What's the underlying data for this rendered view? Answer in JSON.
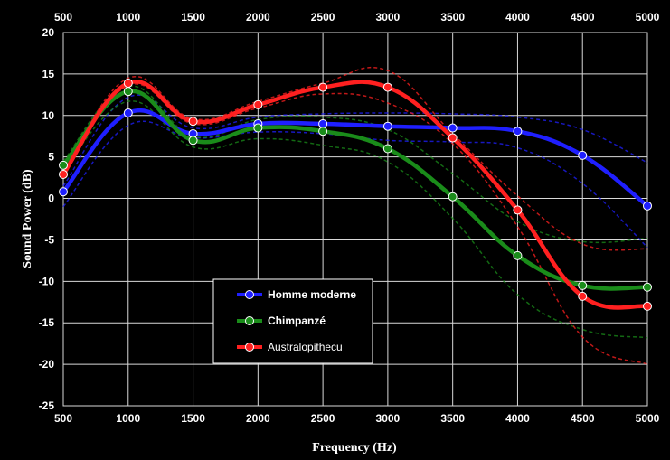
{
  "chart_data": {
    "type": "line",
    "xlabel": "Frequency (Hz)",
    "ylabel": "Sound Power (dB)",
    "xlim": [
      500,
      5000
    ],
    "ylim": [
      -25,
      20
    ],
    "x_ticks": [
      500,
      1000,
      1500,
      2000,
      2500,
      3000,
      3500,
      4000,
      4500,
      5000
    ],
    "y_ticks": [
      20,
      15,
      10,
      5,
      0,
      -5,
      -10,
      -15,
      -20,
      -25
    ],
    "x_tick_labels_top": true,
    "grid": true,
    "legend_position": "center-left, lower",
    "series": [
      {
        "name": "Homme moderne",
        "color": "#1f1fff",
        "bold_label": true,
        "x": [
          500,
          1000,
          1500,
          2000,
          2500,
          3000,
          3500,
          4000,
          4500,
          5000
        ],
        "values": [
          0.8,
          10.3,
          7.8,
          9.0,
          9.0,
          8.7,
          8.5,
          8.1,
          5.2,
          -0.9
        ],
        "upper": [
          1.5,
          12.2,
          8.5,
          9.8,
          10.2,
          10.3,
          10.2,
          9.8,
          8.3,
          4.3
        ],
        "lower": [
          -1.0,
          8.8,
          7.3,
          8.0,
          7.8,
          7.0,
          6.8,
          6.1,
          1.8,
          -5.9
        ]
      },
      {
        "name": "Chimpanzé",
        "color": "#1a8c1a",
        "bold_label": true,
        "x": [
          500,
          1000,
          1500,
          2000,
          2500,
          3000,
          3500,
          4000,
          4500,
          5000
        ],
        "values": [
          4.0,
          12.9,
          7.0,
          8.5,
          8.1,
          6.0,
          0.2,
          -6.9,
          -10.5,
          -10.7
        ],
        "upper": [
          4.5,
          13.5,
          7.5,
          9.5,
          9.8,
          8.3,
          3.0,
          -2.8,
          -5.2,
          -4.8
        ],
        "lower": [
          3.4,
          11.7,
          6.2,
          7.2,
          6.4,
          4.4,
          -2.4,
          -11.6,
          -15.8,
          -16.8
        ]
      },
      {
        "name": "Australopithecu",
        "color": "#ff2020",
        "bold_label": false,
        "x": [
          500,
          1000,
          1500,
          2000,
          2500,
          3000,
          3500,
          4000,
          4500,
          5000
        ],
        "values": [
          2.9,
          13.9,
          9.3,
          11.3,
          13.4,
          13.4,
          7.3,
          -1.4,
          -11.8,
          -13.0
        ],
        "upper": [
          3.1,
          14.5,
          9.6,
          11.7,
          13.9,
          15.4,
          7.8,
          0.3,
          -5.5,
          -6.1
        ],
        "lower": [
          2.6,
          13.6,
          9.0,
          10.9,
          12.6,
          11.5,
          6.6,
          -3.4,
          -16.7,
          -20.0
        ]
      }
    ]
  }
}
